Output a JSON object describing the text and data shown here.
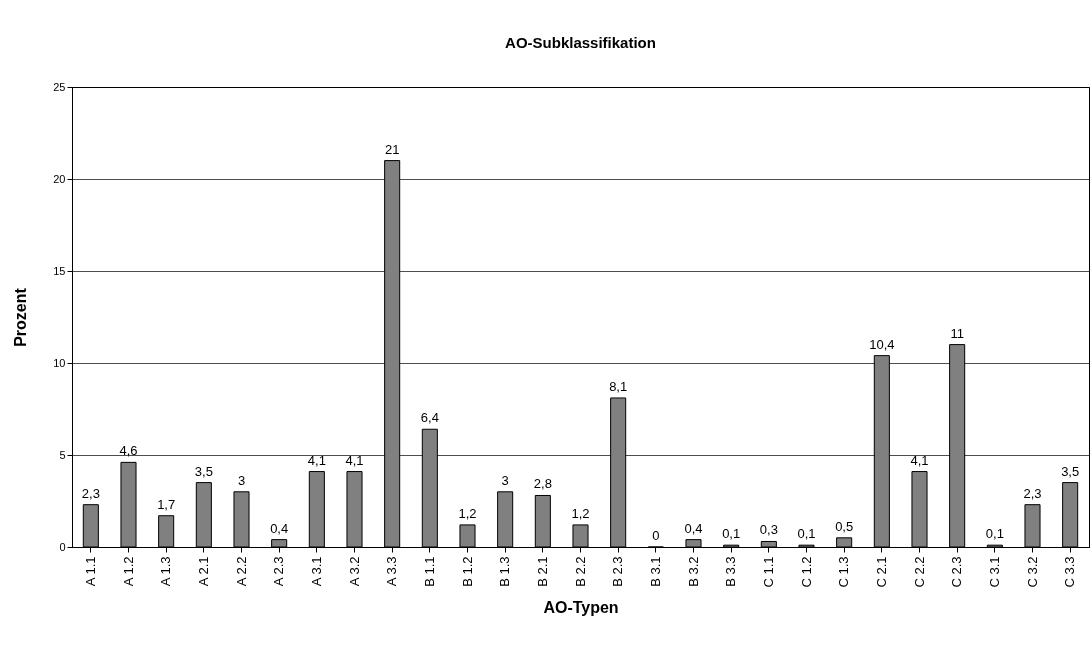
{
  "chart_data": {
    "type": "bar",
    "title": "AO-Subklassifikation",
    "xlabel": "AO-Typen",
    "ylabel": "Prozent",
    "categories": [
      "A 1.1",
      "A 1.2",
      "A 1.3",
      "A 2.1",
      "A 2.2",
      "A 2.3",
      "A 3.1",
      "A 3.2",
      "A 3.3",
      "B 1.1",
      "B 1.2",
      "B 1.3",
      "B 2.1",
      "B 2.2",
      "B 2.3",
      "B 3.1",
      "B 3.2",
      "B 3.3",
      "C 1.1",
      "C 1.2",
      "C 1.3",
      "C 2.1",
      "C 2.2",
      "C 2.3",
      "C 3.1",
      "C 3.2",
      "C 3.3"
    ],
    "values": [
      2.3,
      4.6,
      1.7,
      3.5,
      3,
      0.4,
      4.1,
      4.1,
      21,
      6.4,
      1.2,
      3,
      2.8,
      1.2,
      8.1,
      0,
      0.4,
      0.1,
      0.3,
      0.1,
      0.5,
      10.4,
      4.1,
      11,
      0.1,
      2.3,
      3.5
    ],
    "value_labels": [
      "2,3",
      "4,6",
      "1,7",
      "3,5",
      "3",
      "0,4",
      "4,1",
      "4,1",
      "21",
      "6,4",
      "1,2",
      "3",
      "2,8",
      "1,2",
      "8,1",
      "0",
      "0,4",
      "0,1",
      "0,3",
      "0,1",
      "0,5",
      "10,4",
      "4,1",
      "11",
      "0,1",
      "2,3",
      "3,5"
    ],
    "color": "#808080",
    "ylim": [
      0,
      25
    ],
    "yticks": [
      0,
      5,
      10,
      15,
      20,
      25
    ],
    "grid": "y"
  }
}
